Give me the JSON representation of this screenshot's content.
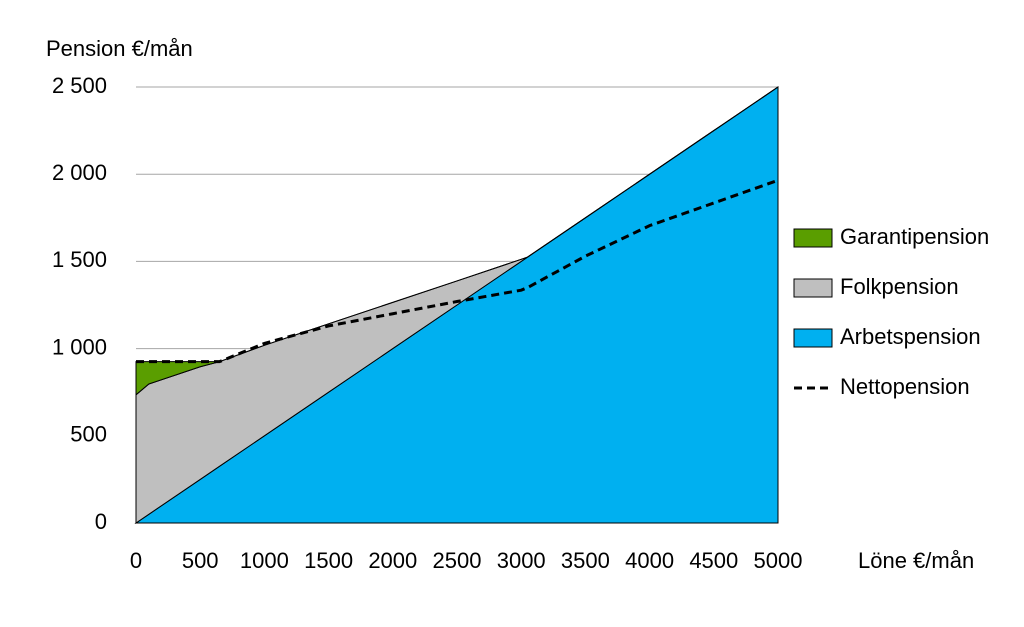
{
  "chart_data": {
    "type": "stacked_area",
    "ylabel": "Pension €/mån",
    "xlabel": "Löne €/mån",
    "x": [
      0,
      100,
      500,
      650,
      1000,
      1500,
      2000,
      2500,
      3000,
      3050,
      3500,
      4000,
      4500,
      5000
    ],
    "series": [
      {
        "name": "Garantipension",
        "color": "#5a9e00",
        "kind": "area",
        "values": [
          190,
          128,
          29,
          0,
          0,
          0,
          0,
          0,
          0,
          0,
          0,
          0,
          0,
          0
        ]
      },
      {
        "name": "Folkpension",
        "color": "#bfbfbf",
        "kind": "area",
        "values": [
          735,
          747,
          646,
          600,
          519,
          392,
          265,
          138,
          12,
          0,
          0,
          0,
          0,
          0
        ]
      },
      {
        "name": "Arbetspension",
        "color": "#00b0f0",
        "kind": "area",
        "values": [
          0,
          50,
          250,
          325,
          500,
          750,
          1000,
          1250,
          1500,
          1525,
          1750,
          2000,
          2250,
          2500
        ]
      },
      {
        "name": "Nettopension",
        "color": "#000000",
        "kind": "dashed_line",
        "values": [
          925,
          925,
          925,
          925,
          1030,
          1130,
          1200,
          1270,
          1335,
          1350,
          1530,
          1705,
          1835,
          1965
        ]
      }
    ],
    "xlim": [
      0,
      5000
    ],
    "xticks": [
      0,
      500,
      1000,
      1500,
      2000,
      2500,
      3000,
      3500,
      4000,
      4500,
      5000
    ],
    "ylim": [
      0,
      2500
    ],
    "yticks": [
      0,
      500,
      {
        "value": 1000,
        "label": "1 000"
      },
      {
        "value": 1500,
        "label": "1 500"
      },
      {
        "value": 2000,
        "label": "2 000"
      },
      {
        "value": 2500,
        "label": "2 500"
      }
    ],
    "grid": true,
    "legend": "right"
  }
}
